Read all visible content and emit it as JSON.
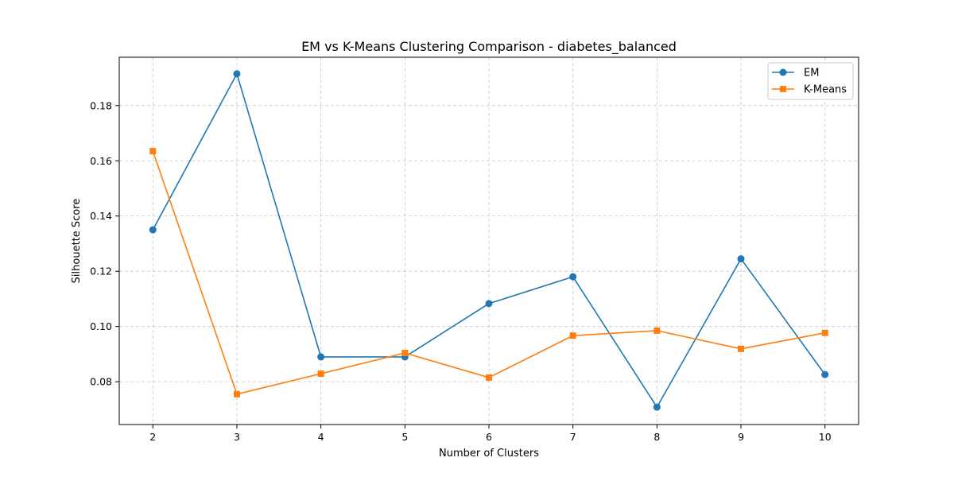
{
  "chart_data": {
    "type": "line",
    "title": "EM vs K-Means Clustering Comparison - diabetes_balanced",
    "xlabel": "Number of Clusters",
    "ylabel": "Silhouette Score",
    "x": [
      2,
      3,
      4,
      5,
      6,
      7,
      8,
      9,
      10
    ],
    "xlim": [
      1.6,
      10.4
    ],
    "ylim": [
      0.0645,
      0.1975
    ],
    "xticks": [
      2,
      3,
      4,
      5,
      6,
      7,
      8,
      9,
      10
    ],
    "yticks": [
      0.08,
      0.1,
      0.12,
      0.14,
      0.16,
      0.18
    ],
    "ytick_labels": [
      "0.08",
      "0.10",
      "0.12",
      "0.14",
      "0.16",
      "0.18"
    ],
    "grid": true,
    "legend_position": "top-right",
    "series": [
      {
        "name": "EM",
        "color": "#1f77b4",
        "marker": "circle",
        "values": [
          0.135,
          0.1915,
          0.089,
          0.089,
          0.1083,
          0.118,
          0.0708,
          0.1245,
          0.0826
        ]
      },
      {
        "name": "K-Means",
        "color": "#ff7f0e",
        "marker": "square",
        "values": [
          0.1635,
          0.0755,
          0.0829,
          0.0904,
          0.0815,
          0.0967,
          0.0985,
          0.0919,
          0.0977
        ]
      }
    ]
  }
}
